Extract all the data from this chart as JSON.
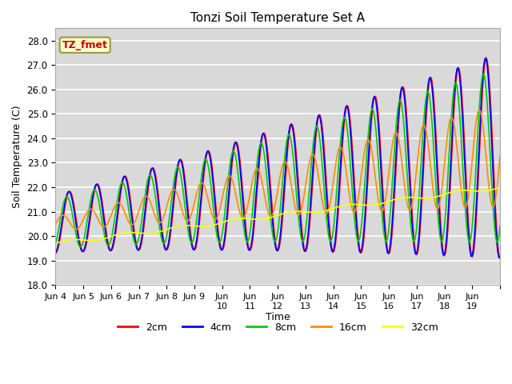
{
  "title": "Tonzi Soil Temperature Set A",
  "xlabel": "Time",
  "ylabel": "Soil Temperature (C)",
  "ylim": [
    18.0,
    28.5
  ],
  "yticks": [
    18.0,
    19.0,
    20.0,
    21.0,
    22.0,
    23.0,
    24.0,
    25.0,
    26.0,
    27.0,
    28.0
  ],
  "series": {
    "2cm": {
      "color": "#ff0000",
      "linewidth": 1.2
    },
    "4cm": {
      "color": "#0000ff",
      "linewidth": 1.2
    },
    "8cm": {
      "color": "#00cc00",
      "linewidth": 1.2
    },
    "16cm": {
      "color": "#ff8c00",
      "linewidth": 1.2
    },
    "32cm": {
      "color": "#ffff00",
      "linewidth": 1.2
    }
  },
  "legend_labels": [
    "2cm",
    "4cm",
    "8cm",
    "16cm",
    "32cm"
  ],
  "legend_colors": [
    "#ff0000",
    "#0000ff",
    "#00cc00",
    "#ff8c00",
    "#ffff00"
  ],
  "annotation_text": "TZ_fmet",
  "annotation_color": "#cc0000",
  "annotation_bg": "#ffffcc",
  "annotation_border": "#999944",
  "plot_bg_color": "#d9d9d9"
}
